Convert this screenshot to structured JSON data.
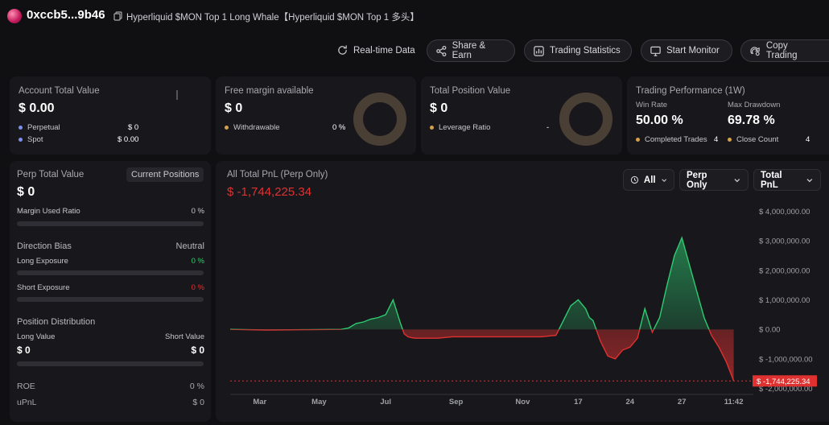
{
  "header": {
    "address": "0xccb5...9b46",
    "title": "Hyperliquid $MON Top 1 Long Whale【Hyperliquid $MON Top 1 多头】"
  },
  "toolbar": {
    "realtime": "Real-time Data",
    "share": "Share & Earn",
    "stats": "Trading Statistics",
    "monitor": "Start Monitor",
    "copy": "Copy Trading"
  },
  "account": {
    "title": "Account Total Value",
    "value": "$ 0.00",
    "perp_label": "Perpetual",
    "perp_value": "$ 0",
    "spot_label": "Spot",
    "spot_value": "$ 0.00"
  },
  "margin": {
    "title": "Free margin available",
    "value": "$ 0",
    "withdraw_label": "Withdrawable",
    "withdraw_value": "0 %"
  },
  "position": {
    "title": "Total Position Value",
    "value": "$ 0",
    "leverage_label": "Leverage Ratio",
    "leverage_value": "-"
  },
  "performance": {
    "title": "Trading Performance (1W)",
    "win_rate_label": "Win Rate",
    "win_rate": "50.00 %",
    "drawdown_label": "Max Drawdown",
    "drawdown": "69.78 %",
    "completed_label": "Completed Trades",
    "completed": "4",
    "close_label": "Close Count",
    "close": "4"
  },
  "perp": {
    "title": "Perp Total Value",
    "tab": "Current Positions",
    "value": "$ 0",
    "margin_used_label": "Margin Used Ratio",
    "margin_used": "0 %",
    "direction_label": "Direction Bias",
    "direction": "Neutral",
    "long_exp_label": "Long Exposure",
    "long_exp": "0 %",
    "short_exp_label": "Short Exposure",
    "short_exp": "0 %",
    "distribution_label": "Position Distribution",
    "long_value_label": "Long Value",
    "short_value_label": "Short Value",
    "long_value": "$ 0",
    "short_value": "$ 0",
    "roe_label": "ROE",
    "roe": "0 %",
    "upnl_label": "uPnL",
    "upnl": "$ 0",
    "margin_used_pct": 0,
    "long_exp_pct": 0,
    "short_exp_pct": 0
  },
  "pnl": {
    "title": "All Total PnL (Perp Only)",
    "value": "$ -1,744,225.34",
    "filter_range": "All",
    "filter_type": "Perp Only",
    "filter_metric": "Total PnL"
  },
  "colors": {
    "profit": "#2ecc71",
    "loss": "#e03131",
    "accent": "#d4a04c"
  },
  "chart_data": {
    "type": "area",
    "title": "All Total PnL (Perp Only)",
    "y_ticks": [
      4000000,
      3000000,
      2000000,
      1000000,
      0,
      -1000000,
      -2000000
    ],
    "y_tick_labels": [
      "$ 4,000,000.00",
      "$ 3,000,000.00",
      "$ 2,000,000.00",
      "$ 1,000,000.00",
      "$ 0.00",
      "$ -1,000,000.00",
      "$ -2,000,000.00"
    ],
    "ylim": [
      -2200000,
      4200000
    ],
    "x_ticks": [
      {
        "label": "Mar",
        "x": 4
      },
      {
        "label": "May",
        "x": 12
      },
      {
        "label": "Jul",
        "x": 21
      },
      {
        "label": "Sep",
        "x": 30.5
      },
      {
        "label": "Nov",
        "x": 39.5
      },
      {
        "label": "17",
        "x": 47
      },
      {
        "label": "24",
        "x": 54
      },
      {
        "label": "27",
        "x": 61
      },
      {
        "label": "11:42",
        "x": 68
      }
    ],
    "xlim": [
      0,
      70
    ],
    "current_label": "$ -1,744,225.34",
    "current_value": -1744225.34,
    "x": [
      0,
      5,
      10,
      15,
      16,
      17,
      18,
      19,
      20,
      21,
      22,
      23,
      23.5,
      24,
      24.5,
      25,
      26,
      28,
      30,
      34,
      38,
      42,
      44,
      45,
      46,
      47,
      48,
      48.5,
      49,
      50,
      51,
      52,
      53,
      54,
      55,
      56,
      57,
      58,
      59,
      60,
      61,
      62,
      63,
      64,
      65,
      66,
      67,
      68
    ],
    "y": [
      0,
      -20000,
      -10000,
      0,
      50000,
      200000,
      250000,
      350000,
      400000,
      500000,
      1000000,
      200000,
      -150000,
      -250000,
      -280000,
      -300000,
      -300000,
      -300000,
      -250000,
      -250000,
      -250000,
      -250000,
      -200000,
      300000,
      800000,
      1000000,
      700000,
      400000,
      300000,
      -400000,
      -900000,
      -1000000,
      -700000,
      -600000,
      -300000,
      700000,
      -100000,
      400000,
      1500000,
      2500000,
      3100000,
      2200000,
      1300000,
      400000,
      -200000,
      -600000,
      -1100000,
      -1744225.34
    ]
  }
}
